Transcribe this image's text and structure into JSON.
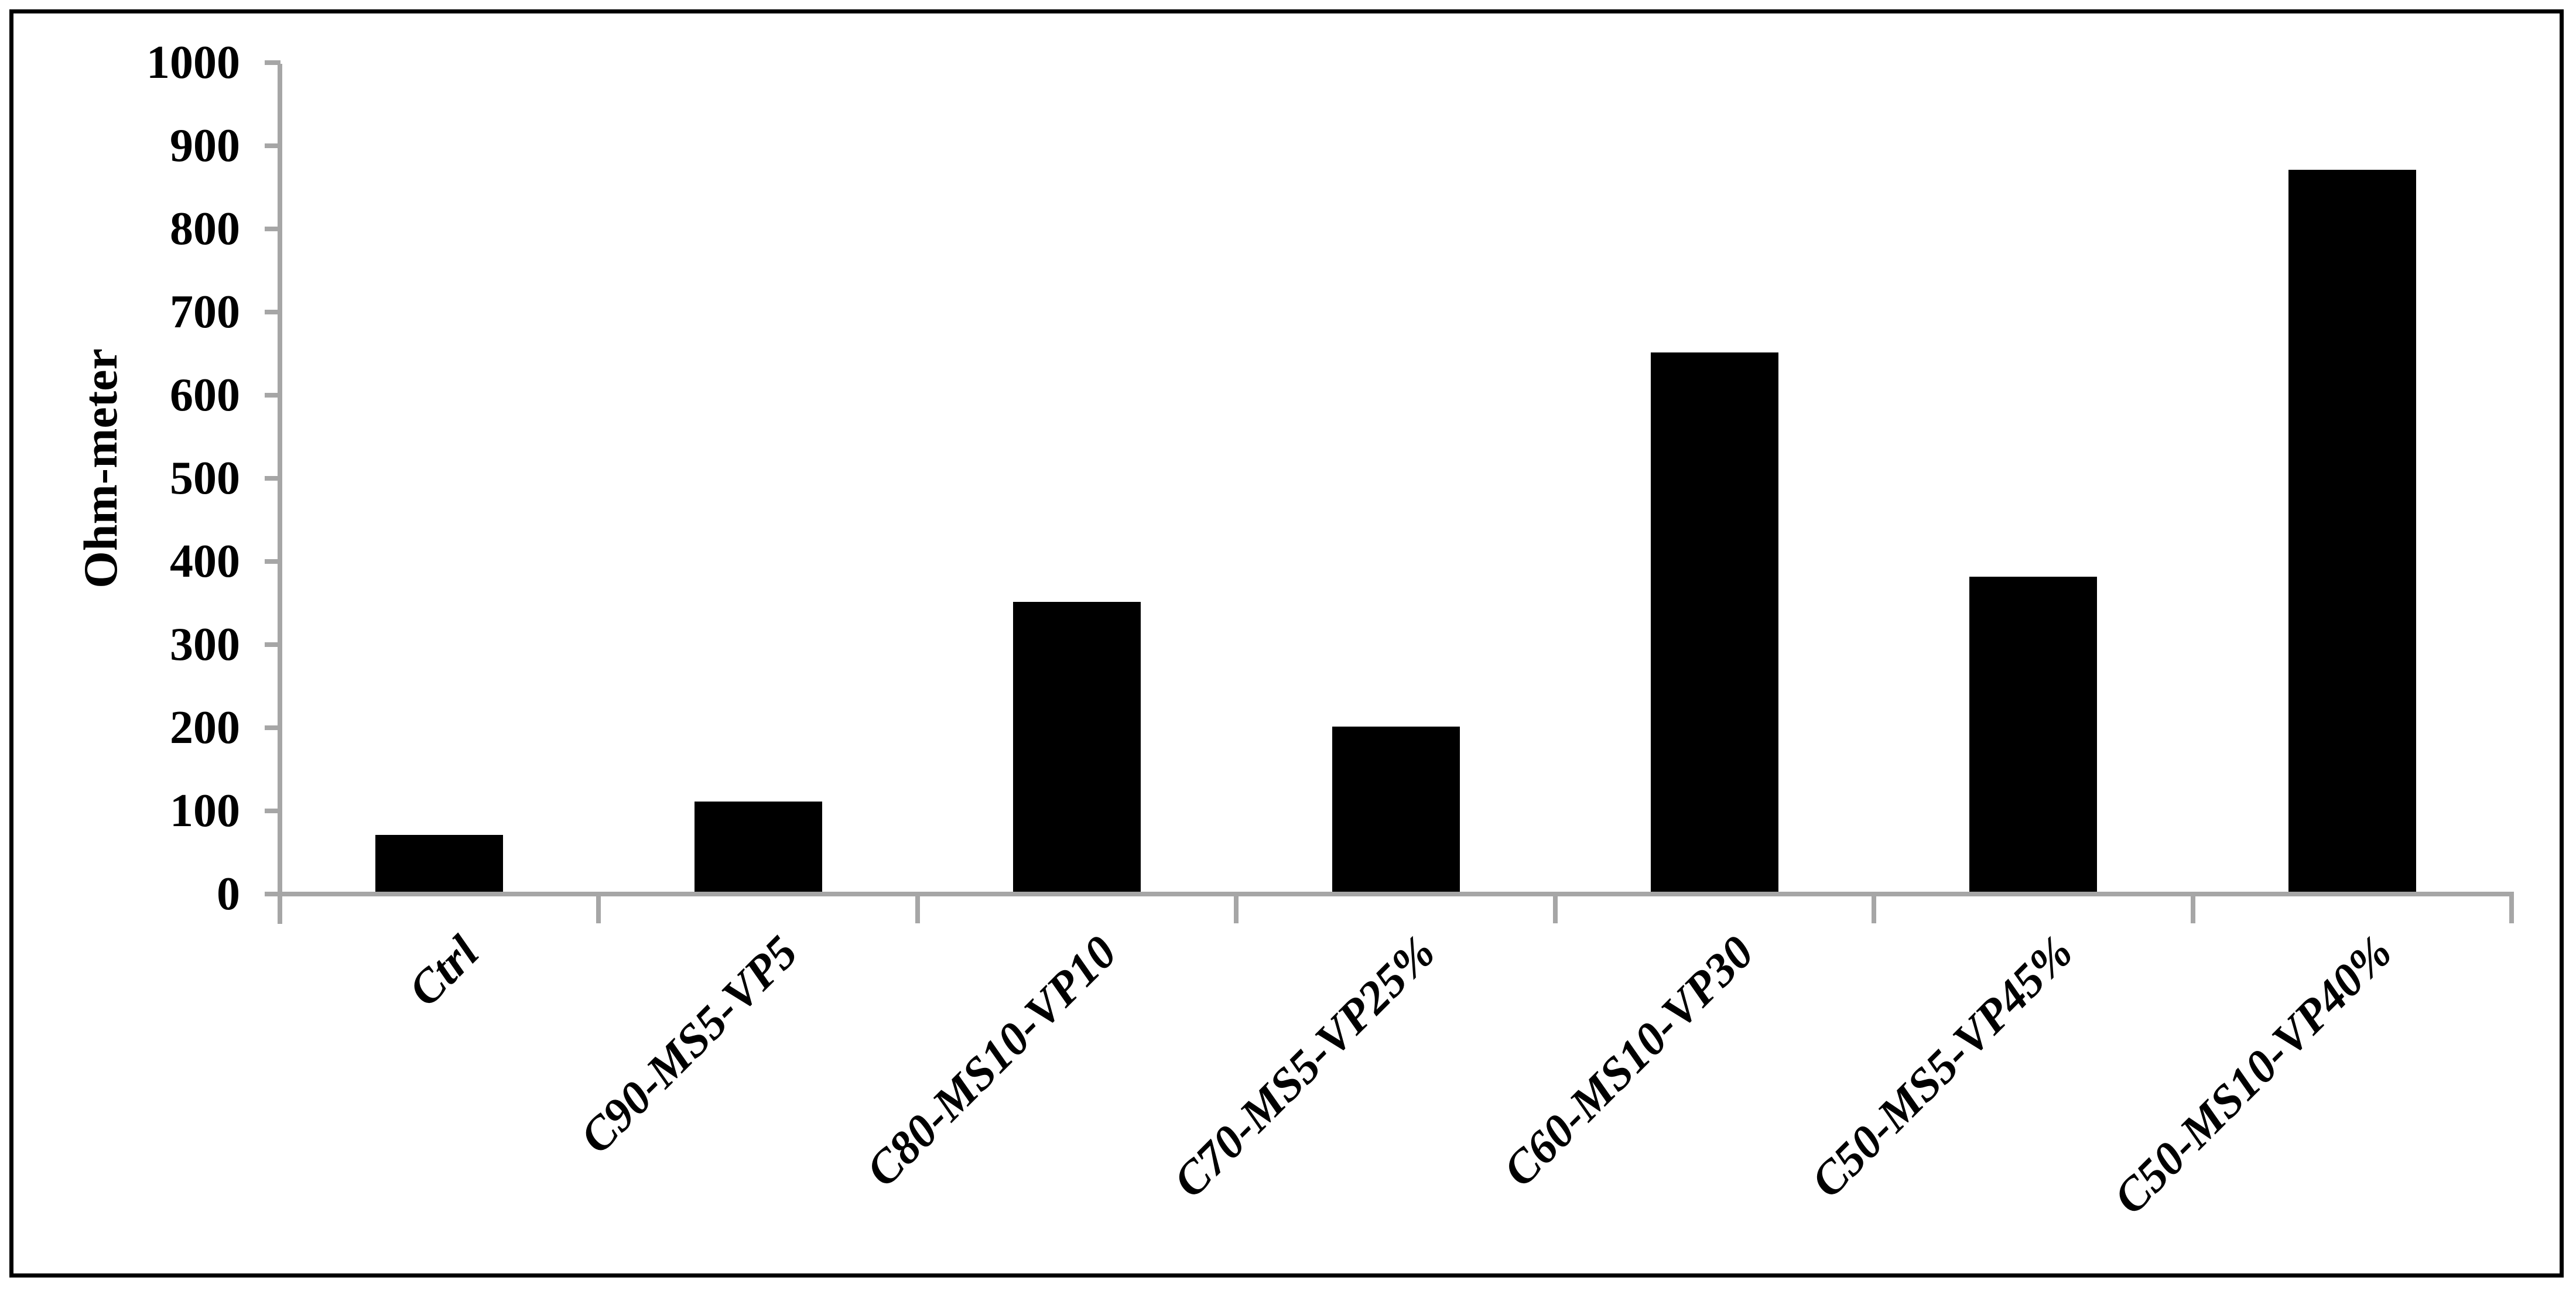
{
  "figure": {
    "background_color": "#ffffff",
    "border_color": "#000000",
    "axis_color": "#a6a6a6",
    "bar_color": "#000000",
    "text_color": "#000000"
  },
  "chart_data": {
    "type": "bar",
    "title": "",
    "xlabel": "",
    "ylabel": "Ohm-meter",
    "categories": [
      "Ctrl",
      "C90-MS5-VP5",
      "C80-MS10-VP10",
      "C70-MS5-VP25%",
      "C60-MS10-VP30",
      "C50-MS5-VP45%",
      "C50-MS10-VP40%"
    ],
    "values": [
      70,
      110,
      350,
      200,
      650,
      380,
      870
    ],
    "ylim": [
      0,
      1000
    ],
    "yticks": [
      0,
      100,
      200,
      300,
      400,
      500,
      600,
      700,
      800,
      900,
      1000
    ],
    "grid": false,
    "legend": "none",
    "bar_orientation": "vertical",
    "x_label_rotation_deg": 45
  }
}
